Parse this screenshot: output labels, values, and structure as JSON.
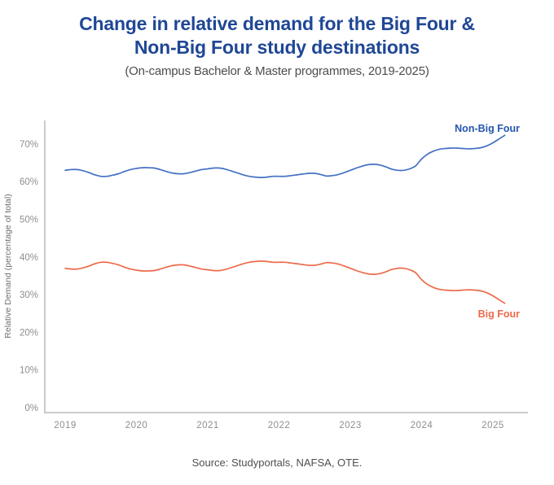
{
  "header": {
    "title_line1": "Change in relative demand for the Big Four &",
    "title_line2": "Non-Big Four study destinations",
    "subtitle": "(On-campus Bachelor & Master programmes, 2019-2025)"
  },
  "footer": {
    "source": "Source: Studyportals, NAFSA, OTE."
  },
  "colors": {
    "title": "#1f4795",
    "subtitle_text": "#4c4c4c",
    "axis": "#cbcbcb",
    "tick_label": "#8e8e8e",
    "y_axis_title": "#6e6e6e",
    "non_big_four_line": "#4470c4",
    "non_big_four_label": "#2357ae",
    "big_four_line": "#ed6a4a",
    "big_four_label": "#ed6a4a",
    "source_text": "#4f4f4f"
  },
  "chart_data": {
    "type": "line",
    "title": "Change in relative demand for the Big Four & Non-Big Four study destinations",
    "subtitle": "(On-campus Bachelor & Master programmes, 2019-2025)",
    "xlabel": "",
    "ylabel": "Relative Demand (percentage of total)",
    "x_start": 2019,
    "points_per_year": 12,
    "x_tick_years": [
      2019,
      2020,
      2021,
      2022,
      2023,
      2024,
      2025
    ],
    "y_ticks_percent": [
      0,
      10,
      20,
      30,
      40,
      50,
      60,
      70
    ],
    "ylim": [
      0,
      76
    ],
    "xlim": [
      2018.7,
      2025.5
    ],
    "grid": false,
    "legend": "inline end-of-line labels",
    "series": [
      {
        "name": "Non-Big Four",
        "color": "#4470c4",
        "label_color": "#2357ae",
        "values": [
          63.0,
          63.2,
          63.2,
          62.9,
          62.4,
          61.8,
          61.4,
          61.4,
          61.7,
          62.1,
          62.7,
          63.2,
          63.5,
          63.7,
          63.7,
          63.6,
          63.2,
          62.7,
          62.3,
          62.1,
          62.1,
          62.4,
          62.8,
          63.2,
          63.4,
          63.6,
          63.6,
          63.3,
          62.8,
          62.3,
          61.8,
          61.4,
          61.2,
          61.1,
          61.2,
          61.4,
          61.4,
          61.4,
          61.6,
          61.8,
          62.0,
          62.2,
          62.2,
          61.9,
          61.5,
          61.6,
          61.9,
          62.4,
          63.0,
          63.6,
          64.1,
          64.5,
          64.6,
          64.4,
          63.9,
          63.3,
          63.0,
          63.0,
          63.4,
          64.2,
          66.0,
          67.3,
          68.1,
          68.6,
          68.8,
          68.9,
          68.9,
          68.8,
          68.7,
          68.8,
          69.0,
          69.5,
          70.3,
          71.3,
          72.3
        ]
      },
      {
        "name": "Big Four",
        "color": "#ed6a4a",
        "label_color": "#ed6a4a",
        "values": [
          37.0,
          36.8,
          36.8,
          37.1,
          37.6,
          38.2,
          38.6,
          38.6,
          38.3,
          37.9,
          37.3,
          36.8,
          36.5,
          36.3,
          36.3,
          36.4,
          36.8,
          37.3,
          37.7,
          37.9,
          37.9,
          37.6,
          37.2,
          36.8,
          36.6,
          36.4,
          36.4,
          36.7,
          37.2,
          37.7,
          38.2,
          38.6,
          38.8,
          38.9,
          38.8,
          38.6,
          38.6,
          38.6,
          38.4,
          38.2,
          38.0,
          37.8,
          37.8,
          38.1,
          38.5,
          38.4,
          38.1,
          37.6,
          37.0,
          36.4,
          35.9,
          35.5,
          35.4,
          35.6,
          36.1,
          36.7,
          37.0,
          37.0,
          36.6,
          35.8,
          34.0,
          32.7,
          31.9,
          31.4,
          31.2,
          31.1,
          31.1,
          31.2,
          31.3,
          31.2,
          31.0,
          30.5,
          29.7,
          28.7,
          27.7
        ]
      }
    ]
  }
}
